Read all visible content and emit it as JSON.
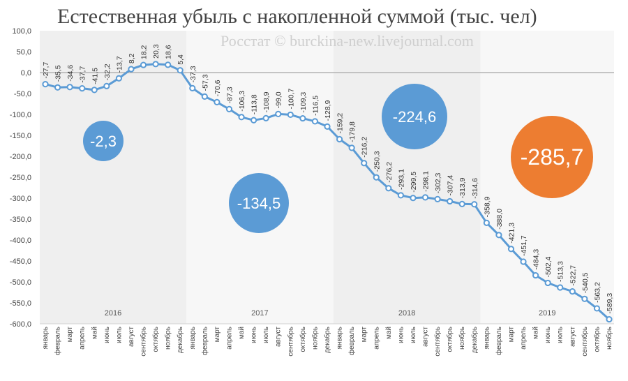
{
  "title": "Естественная убыль с накопленной суммой (тыс. чел)",
  "watermark": "Росстат © burckina-new.livejournal.com",
  "colors": {
    "line": "#5b9bd5",
    "point_fill": "#ffffff",
    "band_shaded": "#efefef",
    "band_plain": "#f7f7f7",
    "zero_line": "#a6a6a6",
    "bubble_blue": "#5b9bd5",
    "bubble_orange": "#ed7d31"
  },
  "chart_data": {
    "type": "line",
    "title": "Естественная убыль с накопленной суммой (тыс. чел)",
    "ylim": [
      -600,
      100
    ],
    "yticks": [
      "100,0",
      "50,0",
      "0,0",
      "-50,0",
      "-100,0",
      "-150,0",
      "-200,0",
      "-250,0",
      "-300,0",
      "-350,0",
      "-400,0",
      "-450,0",
      "-500,0",
      "-550,0",
      "-600,0"
    ],
    "categories": [
      "январь",
      "февраль",
      "март",
      "апрель",
      "май",
      "июнь",
      "июль",
      "август",
      "сентябрь",
      "октябрь",
      "ноябрь",
      "декабрь",
      "январь",
      "февраль",
      "март",
      "апрель",
      "май",
      "июнь",
      "июль",
      "август",
      "сентябрь",
      "октябрь",
      "ноябрь",
      "декабрь",
      "январь",
      "февраль",
      "март",
      "апрель",
      "май",
      "июнь",
      "июль",
      "август",
      "сентябрь",
      "октябрь",
      "ноябрь",
      "декабрь",
      "январь",
      "февраль",
      "март",
      "апрель",
      "май",
      "июнь",
      "июль",
      "август",
      "сентябрь",
      "октябрь",
      "ноябрь"
    ],
    "values": [
      -27.7,
      -35.5,
      -34.6,
      -37.7,
      -41.5,
      -32.2,
      -13.7,
      8.2,
      18.2,
      20.3,
      18.6,
      5.4,
      -37.3,
      -57.3,
      -70.6,
      -87.3,
      -106.3,
      -113.8,
      -108.9,
      -99.0,
      -100.7,
      -109.3,
      -116.5,
      -128.9,
      -159.2,
      -179.8,
      -216.2,
      -250.3,
      -276.2,
      -293.1,
      -299.5,
      -298.1,
      -302.3,
      -307.4,
      -313.9,
      -314.6,
      -358.9,
      -388.0,
      -421.3,
      -451.7,
      -484.3,
      -502.4,
      -513.3,
      -522.7,
      -540.5,
      -563.2,
      -589.3
    ],
    "value_labels": [
      "-27,7",
      "-35,5",
      "-34,6",
      "-37,7",
      "-41,5",
      "-32,2",
      "-13,7",
      "8,2",
      "18,2",
      "20,3",
      "18,6",
      "5,4",
      "-37,3",
      "-57,3",
      "-70,6",
      "-87,3",
      "-106,3",
      "-113,8",
      "-108,9",
      "-99,0",
      "-100,7",
      "-109,3",
      "-116,5",
      "-128,9",
      "-159,2",
      "-179,8",
      "-216,2",
      "-250,3",
      "-276,2",
      "-293,1",
      "-299,5",
      "-298,1",
      "-302,3",
      "-307,4",
      "-313,9",
      "-314,6",
      "-358,9",
      "-388,0",
      "-421,3",
      "-451,7",
      "-484,3",
      "-502,4",
      "-513,3",
      "-522,7",
      "-540,5",
      "-563,2",
      "-589,3"
    ],
    "years": [
      {
        "label": "2016",
        "months": 12
      },
      {
        "label": "2017",
        "months": 12
      },
      {
        "label": "2018",
        "months": 12
      },
      {
        "label": "2019",
        "months": 11
      }
    ],
    "annual_bubbles": [
      {
        "label": "-2,3",
        "year": "2016",
        "color": "blue"
      },
      {
        "label": "-134,5",
        "year": "2017",
        "color": "blue"
      },
      {
        "label": "-224,6",
        "year": "2018",
        "color": "blue"
      },
      {
        "label": "-285,7",
        "year": "2019",
        "color": "orange"
      }
    ],
    "grid": false,
    "legend": "none"
  }
}
